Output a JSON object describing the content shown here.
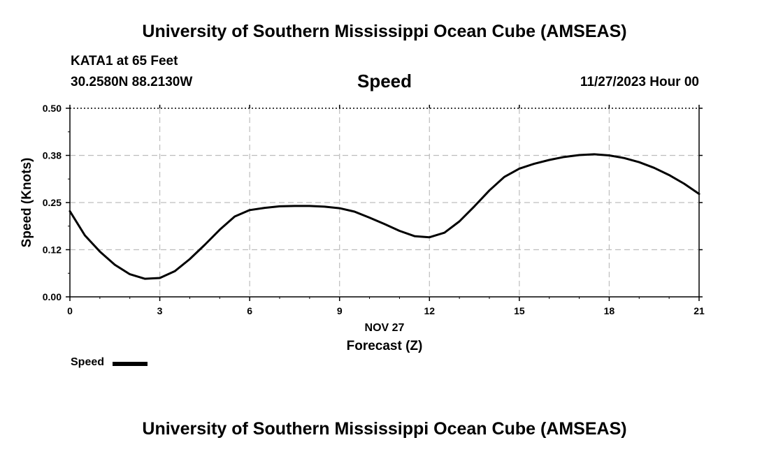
{
  "header": {
    "title": "University of Southern Mississippi Ocean Cube (AMSEAS)",
    "station": "KATA1 at 65 Feet",
    "coords": "30.2580N  88.2130W",
    "subtitle": "Speed",
    "datetime": "11/27/2023 Hour 00"
  },
  "footer": {
    "title": "University of Southern Mississippi Ocean Cube (AMSEAS)"
  },
  "legend": {
    "label": "Speed",
    "color": "#000000"
  },
  "chart_data": {
    "type": "line",
    "title": "Speed",
    "xlabel": "Forecast (Z)",
    "xsublabel": "NOV 27",
    "ylabel": "Speed (Knots)",
    "xlim": [
      0,
      21
    ],
    "ylim": [
      0,
      0.5
    ],
    "xticks": [
      0,
      3,
      6,
      9,
      12,
      15,
      18,
      21
    ],
    "xtick_labels": [
      "0",
      "3",
      "6",
      "9",
      "12",
      "15",
      "18",
      "21"
    ],
    "yticks": [
      0,
      0.125,
      0.25,
      0.375,
      0.5
    ],
    "ytick_labels": [
      "0.00",
      "0.12",
      "0.25",
      "0.38",
      "0.50"
    ],
    "grid": true,
    "legend_position": "bottom-left",
    "series": [
      {
        "name": "Speed",
        "color": "#000000",
        "x": [
          0,
          0.5,
          1,
          1.5,
          2,
          2.5,
          3,
          3.5,
          4,
          4.5,
          5,
          5.5,
          6,
          6.5,
          7,
          7.5,
          8,
          8.5,
          9,
          9.5,
          10,
          10.5,
          11,
          11.5,
          12,
          12.5,
          13,
          13.5,
          14,
          14.5,
          15,
          15.5,
          16,
          16.5,
          17,
          17.5,
          18,
          18.5,
          19,
          19.5,
          20,
          20.5,
          21
        ],
        "values": [
          0.227,
          0.163,
          0.12,
          0.085,
          0.06,
          0.048,
          0.05,
          0.068,
          0.1,
          0.138,
          0.178,
          0.213,
          0.23,
          0.236,
          0.24,
          0.241,
          0.241,
          0.239,
          0.235,
          0.226,
          0.21,
          0.193,
          0.175,
          0.161,
          0.158,
          0.17,
          0.2,
          0.24,
          0.282,
          0.318,
          0.34,
          0.353,
          0.363,
          0.371,
          0.376,
          0.378,
          0.375,
          0.368,
          0.357,
          0.342,
          0.323,
          0.3,
          0.273
        ]
      }
    ]
  }
}
